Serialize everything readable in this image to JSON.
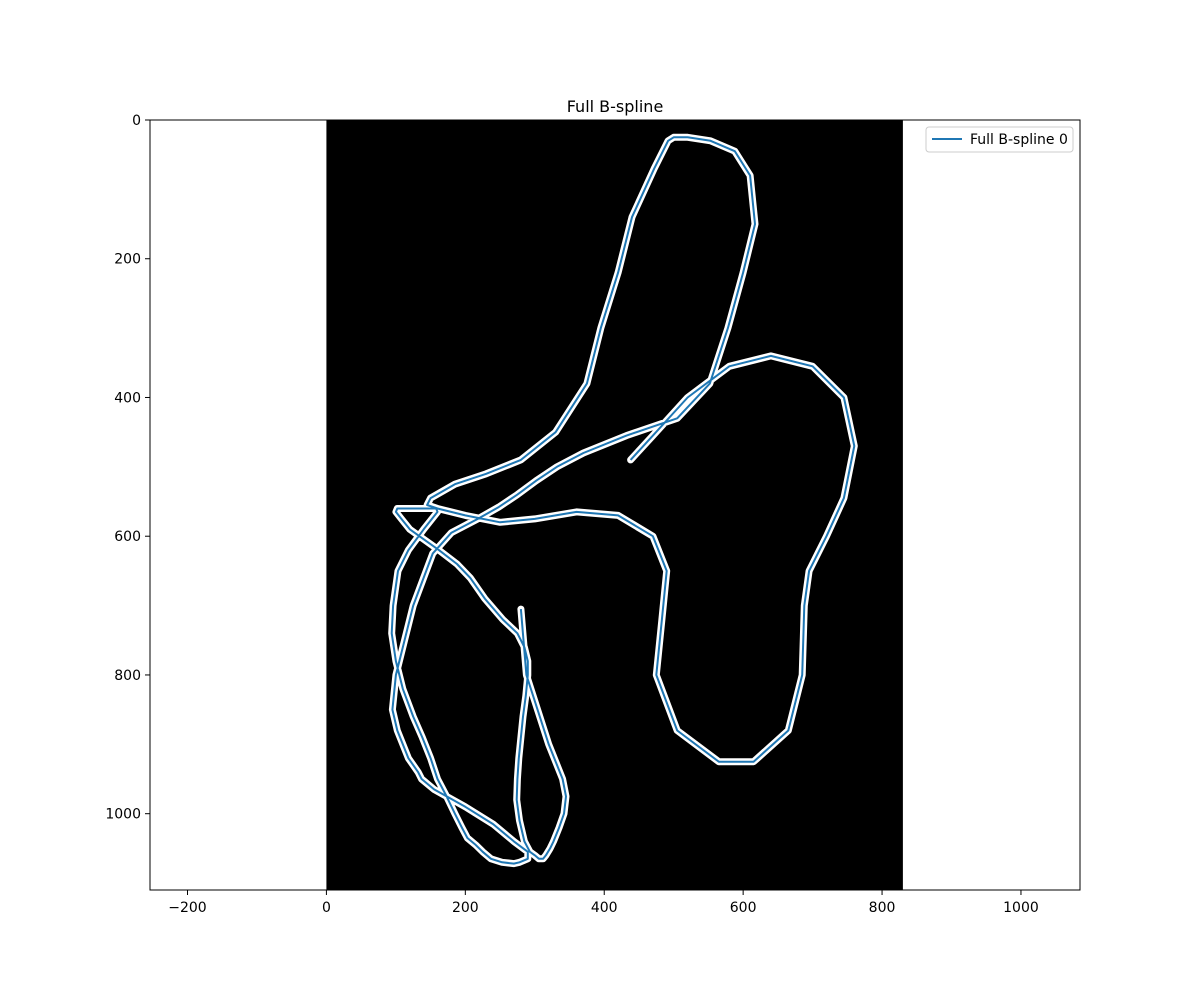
{
  "chart_data": {
    "type": "line",
    "title": "Full B-spline",
    "xlabel": "",
    "ylabel": "",
    "xlim": [
      -254,
      1085
    ],
    "ylim": [
      1110,
      0
    ],
    "y_inverted": true,
    "xticks": [
      -200,
      0,
      200,
      400,
      600,
      800,
      1000
    ],
    "yticks": [
      0,
      200,
      400,
      600,
      800,
      1000
    ],
    "xtick_labels": [
      "−200",
      "0",
      "200",
      "400",
      "600",
      "800",
      "1000"
    ],
    "ytick_labels": [
      "0",
      "200",
      "400",
      "600",
      "800",
      "1000"
    ],
    "grid": false,
    "legend_position": "upper-right",
    "background_image": {
      "description": "black image with white-outlined curve",
      "x_extent": [
        0,
        830
      ],
      "y_extent": [
        0,
        1110
      ],
      "color": "#000000"
    },
    "series": [
      {
        "name": "Full B-spline 0",
        "color": "#1f77b4",
        "x": [
          438,
          470,
          520,
          580,
          640,
          700,
          745,
          760,
          745,
          720,
          695,
          688,
          685,
          665,
          615,
          565,
          505,
          475,
          483,
          490,
          470,
          420,
          360,
          300,
          250,
          200,
          160,
          145,
          150,
          185,
          230,
          280,
          330,
          375,
          395,
          420,
          440,
          472,
          492,
          500,
          520,
          553,
          588,
          610,
          617,
          600,
          578,
          552,
          505,
          432,
          370,
          332,
          302,
          275,
          248,
          218,
          180,
          153,
          125,
          100,
          95,
          102,
          118,
          132,
          137,
          155,
          200,
          240,
          270,
          290,
          290,
          278,
          270,
          253,
          237,
          225,
          215,
          203,
          195,
          185,
          173,
          160,
          150,
          138,
          125,
          110,
          100,
          94,
          96,
          103,
          118,
          140,
          160,
          158,
          140,
          120,
          102,
          100,
          108,
          120,
          141,
          162,
          188,
          207,
          228,
          254,
          275,
          285,
          290,
          290,
          287,
          283,
          280,
          277,
          275,
          274,
          278,
          285,
          293,
          300,
          306,
          312,
          316,
          322,
          327,
          335,
          342,
          345,
          340,
          320,
          288,
          280
        ],
        "y": [
          490,
          455,
          400,
          355,
          340,
          355,
          400,
          470,
          545,
          600,
          650,
          700,
          800,
          880,
          925,
          925,
          880,
          800,
          720,
          650,
          600,
          570,
          565,
          575,
          580,
          570,
          560,
          555,
          545,
          525,
          510,
          490,
          450,
          380,
          300,
          220,
          140,
          70,
          30,
          25,
          25,
          30,
          45,
          80,
          150,
          220,
          300,
          380,
          430,
          455,
          480,
          500,
          520,
          540,
          558,
          575,
          595,
          625,
          700,
          800,
          850,
          880,
          920,
          940,
          950,
          965,
          990,
          1015,
          1040,
          1055,
          1065,
          1070,
          1072,
          1070,
          1065,
          1055,
          1045,
          1035,
          1020,
          1000,
          975,
          950,
          920,
          890,
          860,
          820,
          780,
          740,
          700,
          650,
          620,
          590,
          565,
          560,
          560,
          560,
          560,
          565,
          575,
          590,
          605,
          620,
          640,
          660,
          690,
          720,
          740,
          760,
          780,
          800,
          830,
          860,
          890,
          920,
          950,
          980,
          1010,
          1040,
          1055,
          1060,
          1065,
          1065,
          1060,
          1050,
          1040,
          1020,
          1000,
          975,
          950,
          900,
          800,
          705
        ]
      }
    ]
  }
}
